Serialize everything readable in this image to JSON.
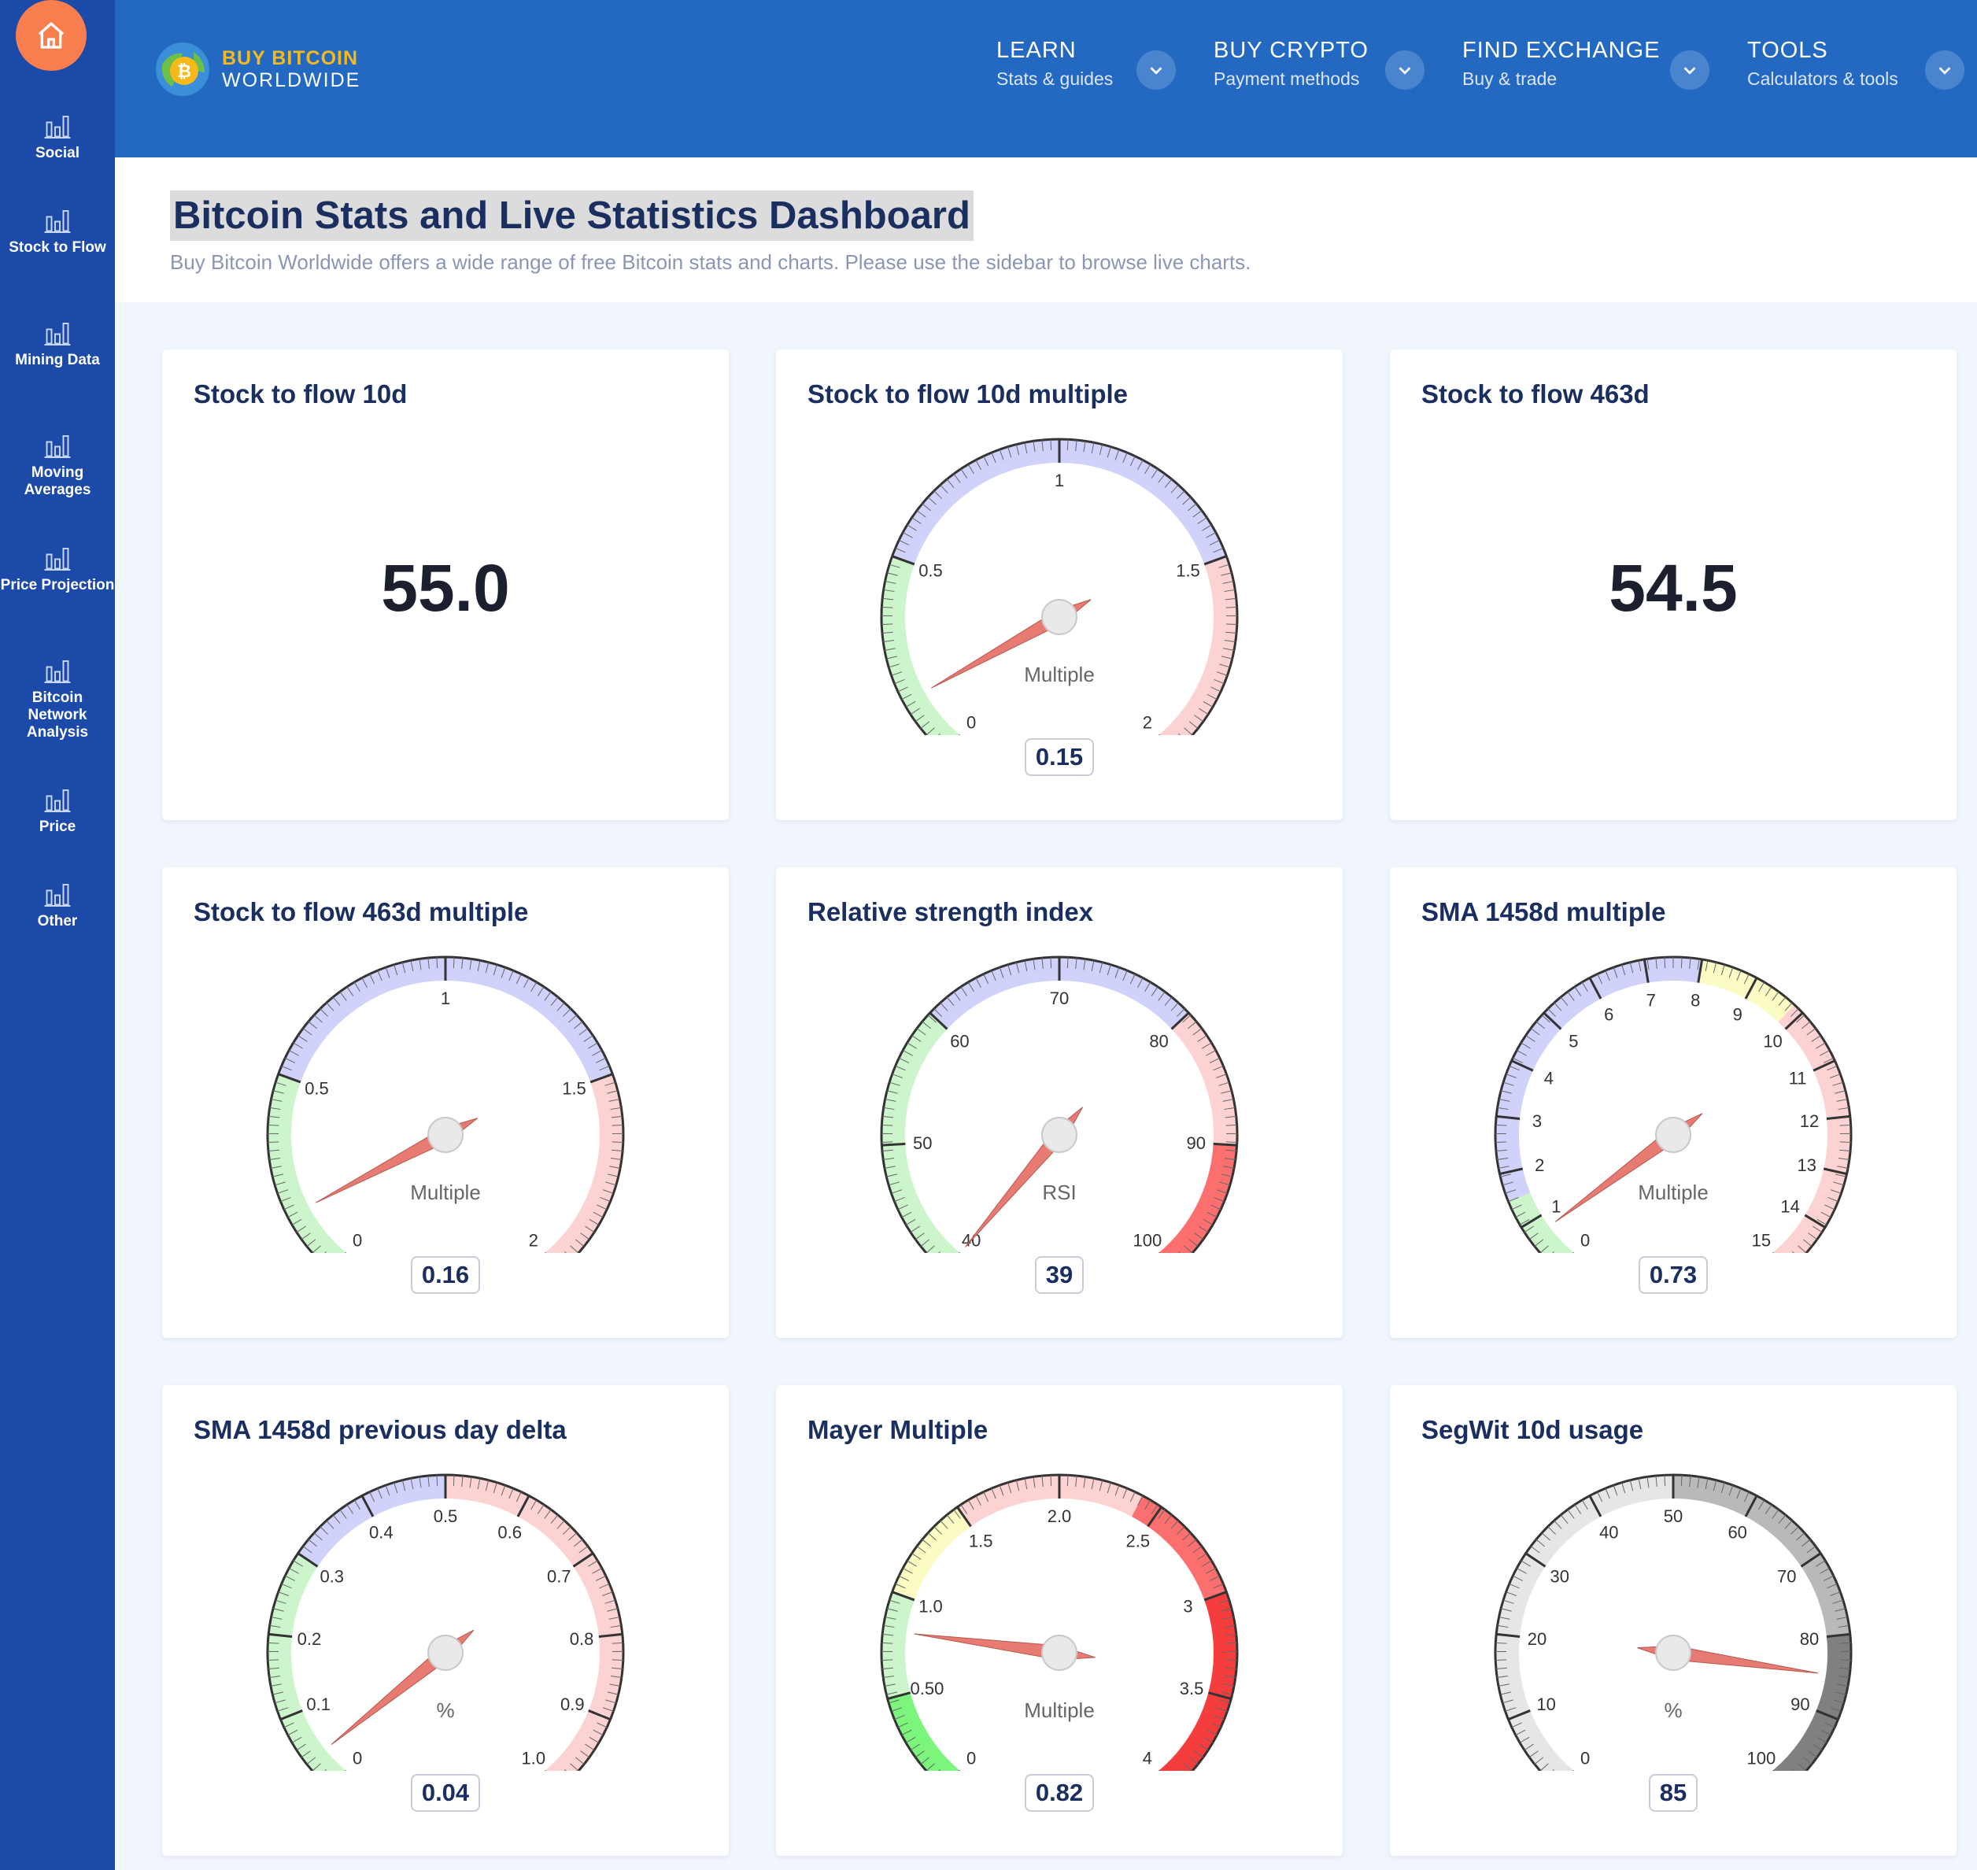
{
  "sidebar": {
    "items": [
      {
        "label": "Social"
      },
      {
        "label": "Stock to Flow"
      },
      {
        "label": "Mining Data"
      },
      {
        "label": "Moving Averages"
      },
      {
        "label": "Price Projection"
      },
      {
        "label": "Bitcoin Network Analysis"
      },
      {
        "label": "Price"
      },
      {
        "label": "Other"
      }
    ]
  },
  "header": {
    "logo_line1": "BUY BITCOIN",
    "logo_line2": "WORLDWIDE",
    "nav": [
      {
        "title": "LEARN",
        "sub": "Stats & guides"
      },
      {
        "title": "BUY CRYPTO",
        "sub": "Payment methods"
      },
      {
        "title": "FIND EXCHANGE",
        "sub": "Buy & trade"
      },
      {
        "title": "TOOLS",
        "sub": "Calculators & tools"
      }
    ]
  },
  "page": {
    "title": "Bitcoin Stats and Live Statistics Dashboard",
    "subtitle": "Buy Bitcoin Worldwide offers a wide range of free Bitcoin stats and charts. Please use the sidebar to browse live charts."
  },
  "cards": [
    {
      "title": "Stock to flow 10d",
      "type": "number",
      "value": "55.0"
    },
    {
      "title": "Stock to flow 10d multiple",
      "type": "gauge",
      "value": "0.15",
      "num": 0.15,
      "min": 0,
      "max": 2,
      "unit": "Multiple",
      "ticks": [
        {
          "v": 0,
          "t": "0"
        },
        {
          "v": 0.5,
          "t": "0.5"
        },
        {
          "v": 1,
          "t": "1"
        },
        {
          "v": 1.5,
          "t": "1.5"
        },
        {
          "v": 2,
          "t": "2"
        }
      ],
      "bands": [
        {
          "from": 0,
          "to": 0.5,
          "color": "#ccf5cc"
        },
        {
          "from": 0.5,
          "to": 1.5,
          "color": "#d0d2fb"
        },
        {
          "from": 1.5,
          "to": 2,
          "color": "#fdd2d2"
        }
      ]
    },
    {
      "title": "Stock to flow 463d",
      "type": "number",
      "value": "54.5"
    },
    {
      "title": "Stock to flow 463d multiple",
      "type": "gauge",
      "value": "0.16",
      "num": 0.16,
      "min": 0,
      "max": 2,
      "unit": "Multiple",
      "ticks": [
        {
          "v": 0,
          "t": "0"
        },
        {
          "v": 0.5,
          "t": "0.5"
        },
        {
          "v": 1,
          "t": "1"
        },
        {
          "v": 1.5,
          "t": "1.5"
        },
        {
          "v": 2,
          "t": "2"
        }
      ],
      "bands": [
        {
          "from": 0,
          "to": 0.5,
          "color": "#ccf5cc"
        },
        {
          "from": 0.5,
          "to": 1.5,
          "color": "#d0d2fb"
        },
        {
          "from": 1.5,
          "to": 2,
          "color": "#fdd2d2"
        }
      ]
    },
    {
      "title": "Relative strength index",
      "type": "gauge",
      "value": "39",
      "num": 39,
      "min": 40,
      "max": 100,
      "unit": "RSI",
      "ticks": [
        {
          "v": 40,
          "t": "40"
        },
        {
          "v": 50,
          "t": "50"
        },
        {
          "v": 60,
          "t": "60"
        },
        {
          "v": 70,
          "t": "70"
        },
        {
          "v": 80,
          "t": "80"
        },
        {
          "v": 90,
          "t": "90"
        },
        {
          "v": 100,
          "t": "100"
        }
      ],
      "bands": [
        {
          "from": 40,
          "to": 60,
          "color": "#ccf5cc"
        },
        {
          "from": 60,
          "to": 80,
          "color": "#d0d2fb"
        },
        {
          "from": 80,
          "to": 90,
          "color": "#fdd2d2"
        },
        {
          "from": 90,
          "to": 100,
          "color": "#fb6f6f"
        }
      ]
    },
    {
      "title": "SMA 1458d multiple",
      "type": "gauge",
      "value": "0.73",
      "num": 0.73,
      "min": 0,
      "max": 15,
      "unit": "Multiple",
      "ticks": [
        {
          "v": 0,
          "t": "0"
        },
        {
          "v": 1,
          "t": "1"
        },
        {
          "v": 2,
          "t": "2"
        },
        {
          "v": 3,
          "t": "3"
        },
        {
          "v": 4,
          "t": "4"
        },
        {
          "v": 5,
          "t": "5"
        },
        {
          "v": 6,
          "t": "6"
        },
        {
          "v": 7,
          "t": "7"
        },
        {
          "v": 8,
          "t": "8"
        },
        {
          "v": 9,
          "t": "9"
        },
        {
          "v": 10,
          "t": "10"
        },
        {
          "v": 11,
          "t": "11"
        },
        {
          "v": 12,
          "t": "12"
        },
        {
          "v": 13,
          "t": "13"
        },
        {
          "v": 14,
          "t": "14"
        },
        {
          "v": 15,
          "t": "15"
        }
      ],
      "bands": [
        {
          "from": 0,
          "to": 1.5,
          "color": "#ccf5cc"
        },
        {
          "from": 1.5,
          "to": 8,
          "color": "#d0d2fb"
        },
        {
          "from": 8,
          "to": 9.8,
          "color": "#fbfbc4"
        },
        {
          "from": 9.8,
          "to": 15,
          "color": "#fdd2d2"
        }
      ]
    },
    {
      "title": "SMA 1458d previous day delta",
      "type": "gauge",
      "value": "0.04",
      "num": 0.04,
      "min": 0,
      "max": 1,
      "unit": "%",
      "ticks": [
        {
          "v": 0,
          "t": "0"
        },
        {
          "v": 0.1,
          "t": "0.1"
        },
        {
          "v": 0.2,
          "t": "0.2"
        },
        {
          "v": 0.3,
          "t": "0.3"
        },
        {
          "v": 0.4,
          "t": "0.4"
        },
        {
          "v": 0.5,
          "t": "0.5"
        },
        {
          "v": 0.6,
          "t": "0.6"
        },
        {
          "v": 0.7,
          "t": "0.7"
        },
        {
          "v": 0.8,
          "t": "0.8"
        },
        {
          "v": 0.9,
          "t": "0.9"
        },
        {
          "v": 1,
          "t": "1.0"
        }
      ],
      "bands": [
        {
          "from": 0,
          "to": 0.3,
          "color": "#ccf5cc"
        },
        {
          "from": 0.3,
          "to": 0.5,
          "color": "#d0d2fb"
        },
        {
          "from": 0.5,
          "to": 1,
          "color": "#fdd2d2"
        }
      ]
    },
    {
      "title": "Mayer Multiple",
      "type": "gauge",
      "value": "0.82",
      "num": 0.82,
      "min": 0,
      "max": 4,
      "unit": "Multiple",
      "ticks": [
        {
          "v": 0,
          "t": "0"
        },
        {
          "v": 0.5,
          "t": "0.50"
        },
        {
          "v": 1,
          "t": "1.0"
        },
        {
          "v": 1.5,
          "t": "1.5"
        },
        {
          "v": 2,
          "t": "2.0"
        },
        {
          "v": 2.5,
          "t": "2.5"
        },
        {
          "v": 3,
          "t": "3"
        },
        {
          "v": 3.5,
          "t": "3.5"
        },
        {
          "v": 4,
          "t": "4"
        }
      ],
      "bands": [
        {
          "from": 0,
          "to": 0.5,
          "color": "#7cf57c"
        },
        {
          "from": 0.5,
          "to": 1.0,
          "color": "#ccf5cc"
        },
        {
          "from": 1.0,
          "to": 1.5,
          "color": "#fbfbc4"
        },
        {
          "from": 1.5,
          "to": 2.4,
          "color": "#fdd2d2"
        },
        {
          "from": 2.4,
          "to": 3.0,
          "color": "#fb6f6f"
        },
        {
          "from": 3.0,
          "to": 4,
          "color": "#f63d3d"
        }
      ]
    },
    {
      "title": "SegWit 10d usage",
      "type": "gauge",
      "value": "85",
      "num": 85,
      "min": 0,
      "max": 100,
      "unit": "%",
      "ticks": [
        {
          "v": 0,
          "t": "0"
        },
        {
          "v": 10,
          "t": "10"
        },
        {
          "v": 20,
          "t": "20"
        },
        {
          "v": 30,
          "t": "30"
        },
        {
          "v": 40,
          "t": "40"
        },
        {
          "v": 50,
          "t": "50"
        },
        {
          "v": 60,
          "t": "60"
        },
        {
          "v": 70,
          "t": "70"
        },
        {
          "v": 80,
          "t": "80"
        },
        {
          "v": 90,
          "t": "90"
        },
        {
          "v": 100,
          "t": "100"
        }
      ],
      "bands": [
        {
          "from": 0,
          "to": 50,
          "color": "#e6e6e6"
        },
        {
          "from": 50,
          "to": 80,
          "color": "#b9b9b9"
        },
        {
          "from": 80,
          "to": 100,
          "color": "#808080"
        }
      ]
    }
  ]
}
